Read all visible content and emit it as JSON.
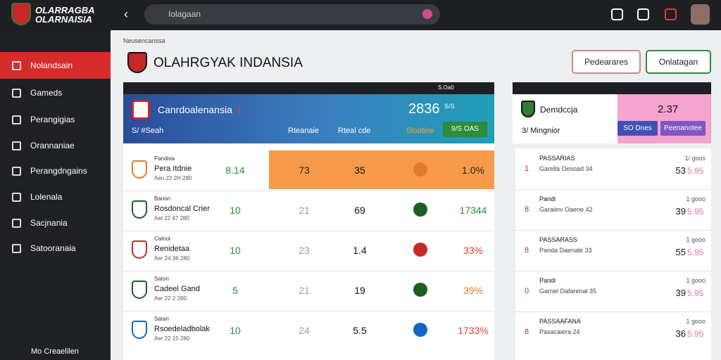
{
  "header": {
    "logo_lines": [
      "OLARRAGBA",
      "OLARNAISIA"
    ],
    "search_placeholder": "Iolagaan"
  },
  "sidebar": {
    "items": [
      "Nolandsain",
      "Gameds",
      "Perangigias",
      "Orannaniae",
      "Perangdngains",
      "Lolenala",
      "Sacjnania",
      "Satooranaia"
    ],
    "footer": "Mo Creaelilen"
  },
  "page": {
    "breadcrumb": "Neusencanssa",
    "title": "OLAHRGYAK INDANSIA",
    "buttons": [
      "Pedearares",
      "Onlatagan"
    ]
  },
  "banner": {
    "header": "S.Oa0",
    "name": "Canrdoalenansia",
    "badge": "1",
    "score": "2836",
    "score_note": "S/S",
    "sub": "S/ #Seah",
    "cols": [
      "Rteanaie",
      "Rteal cde",
      "Sloatine"
    ],
    "button": "9/S OAS"
  },
  "table": {
    "rows": [
      [
        "Pandisa",
        "Pera Itdnie",
        "Aeu 22 2H 280",
        "8.14",
        "73",
        "35",
        "1.0%"
      ],
      [
        "Banon",
        "Rosdoncal Crier",
        "Aet 22 47 280",
        "10",
        "21",
        "69",
        "17344"
      ],
      [
        "Cainot",
        "Renidetaa",
        "Aer 24 36 280",
        "10",
        "23",
        "1.4",
        "33%"
      ],
      [
        "Saton",
        "Cadeel Gand",
        "Aer 22 2 280",
        "5",
        "21",
        "19",
        "39%"
      ],
      [
        "Satan",
        "Rsoedeladbolak",
        "Aer 22 15 280",
        "10",
        "24",
        "5.5",
        "1733%"
      ]
    ]
  },
  "side_card": {
    "name": "Demdccja",
    "value": "2.37",
    "sub": "3/ Mingnior",
    "buttons": [
      "SO Dnes",
      "Peenanotee"
    ]
  },
  "side_list": {
    "items": [
      {
        "rank": "1",
        "league": "PASSARIAS",
        "match": "Garella Oesoad 34",
        "odds": "1/ goos",
        "score": "53",
        "price": "5.95"
      },
      {
        "rank": "8",
        "league": "Pandl",
        "match": "Garaiinv Oaene 42",
        "odds": "1 gooo",
        "score": "39",
        "price": "5.95"
      },
      {
        "rank": "8",
        "league": "PASSARASS",
        "match": "Panda Daenale 33",
        "odds": "1 gooo",
        "score": "55",
        "price": "5.95"
      },
      {
        "rank": "0",
        "league": "Pandl",
        "match": "Garnel Dafarenal 35",
        "odds": "1 gooo",
        "score": "39",
        "price": "5.95"
      },
      {
        "rank": "8",
        "league": "PASSAAFANA",
        "match": "Pasacaiera 24",
        "odds": "1 gooo",
        "score": "36",
        "price": "5.95"
      }
    ]
  }
}
